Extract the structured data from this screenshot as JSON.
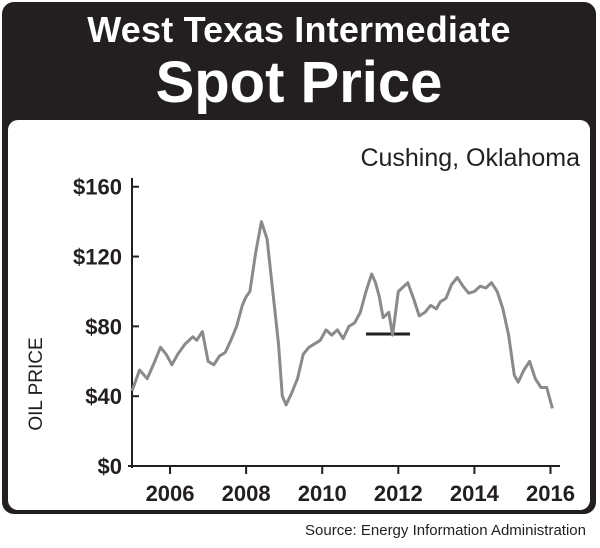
{
  "title_line1": "West Texas Intermediate",
  "title_line2": "Spot Price",
  "source": "Source: Energy Information Administration",
  "colors": {
    "frame": "#231f20",
    "line": "#8a8a8a",
    "text": "#231f20"
  },
  "chart_data": {
    "type": "line",
    "subtitle": "Cushing, Oklahoma",
    "ylabel": "OIL PRICE",
    "xlabel": "",
    "xlim": [
      2005.0,
      2016.25
    ],
    "ylim": [
      0,
      165
    ],
    "y_ticks": [
      0,
      40,
      80,
      120,
      160
    ],
    "y_tick_labels": [
      "$0",
      "$40",
      "$80",
      "$120",
      "$160"
    ],
    "x_ticks": [
      2006,
      2008,
      2010,
      2012,
      2014,
      2016
    ],
    "x_tick_labels": [
      "2006",
      "2008",
      "2010",
      "2012",
      "2014",
      "2016"
    ],
    "grid": false,
    "series": [
      {
        "name": "",
        "x": [
          2005.0,
          2005.2,
          2005.4,
          2005.6,
          2005.75,
          2005.9,
          2006.05,
          2006.2,
          2006.4,
          2006.6,
          2006.7,
          2006.85,
          2007.0,
          2007.15,
          2007.3,
          2007.45,
          2007.6,
          2007.75,
          2007.9,
          2008.0,
          2008.1,
          2008.25,
          2008.4,
          2008.55,
          2008.7,
          2008.85,
          2008.95,
          2009.05,
          2009.2,
          2009.35,
          2009.5,
          2009.65,
          2009.8,
          2009.95,
          2010.1,
          2010.25,
          2010.4,
          2010.55,
          2010.7,
          2010.85,
          2011.0,
          2011.15,
          2011.3,
          2011.4,
          2011.5,
          2011.6,
          2011.75,
          2011.85,
          2012.0,
          2012.1,
          2012.25,
          2012.4,
          2012.55,
          2012.7,
          2012.85,
          2013.0,
          2013.1,
          2013.25,
          2013.4,
          2013.55,
          2013.7,
          2013.85,
          2014.0,
          2014.15,
          2014.3,
          2014.45,
          2014.6,
          2014.75,
          2014.9,
          2015.05,
          2015.15,
          2015.3,
          2015.45,
          2015.6,
          2015.75,
          2015.9,
          2016.05
        ],
        "values": [
          43,
          55,
          50,
          60,
          68,
          64,
          58,
          64,
          70,
          74,
          72,
          77,
          60,
          58,
          63,
          65,
          72,
          80,
          92,
          97,
          100,
          122,
          140,
          130,
          100,
          70,
          40,
          35,
          42,
          50,
          64,
          68,
          70,
          72,
          78,
          75,
          78,
          73,
          80,
          82,
          88,
          100,
          110,
          105,
          97,
          85,
          88,
          75,
          100,
          102,
          105,
          96,
          86,
          88,
          92,
          90,
          94,
          96,
          104,
          108,
          103,
          99,
          100,
          103,
          102,
          105,
          100,
          90,
          75,
          52,
          48,
          55,
          60,
          50,
          45,
          45,
          33
        ]
      }
    ]
  }
}
